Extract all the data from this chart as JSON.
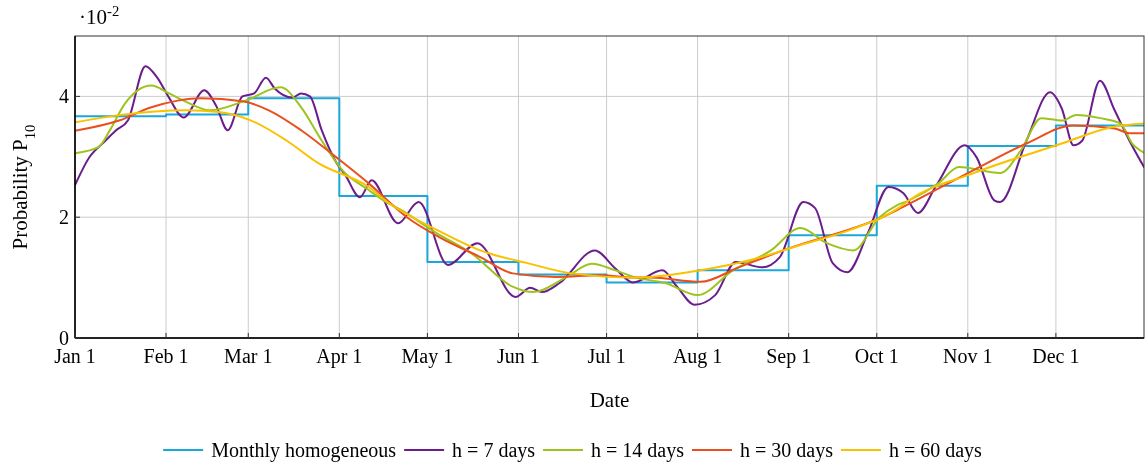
{
  "chart_data": {
    "type": "line",
    "xlabel": "Date",
    "ylabel": "Probability P$_{10}$",
    "annotations": [
      "·10$^{-2}$"
    ],
    "xlim": [
      "--01-01",
      "--12-31"
    ],
    "xticks": [
      {
        "value": "--01-01",
        "label": "Jan 1"
      },
      {
        "value": "--02-01",
        "label": "Feb 1"
      },
      {
        "value": "--03-01",
        "label": "Mar 1"
      },
      {
        "value": "--04-01",
        "label": "Apr 1"
      },
      {
        "value": "--05-01",
        "label": "May 1"
      },
      {
        "value": "--06-01",
        "label": "Jun 1"
      },
      {
        "value": "--07-01",
        "label": "Jul 1"
      },
      {
        "value": "--08-01",
        "label": "Aug 1"
      },
      {
        "value": "--09-01",
        "label": "Sep 1"
      },
      {
        "value": "--10-01",
        "label": "Oct 1"
      },
      {
        "value": "--11-01",
        "label": "Nov 1"
      },
      {
        "value": "--12-01",
        "label": "Dec 1"
      }
    ],
    "ylim": [
      0,
      5
    ],
    "yticks": [
      0,
      2,
      4
    ],
    "grid": true,
    "legend": "bottom",
    "line_style": "solid",
    "series": [
      {
        "name": "Monthly homogeneous",
        "type": "step",
        "color": "#1aa7d9",
        "x": [
          "--01-01",
          "--02-01",
          "--03-01",
          "--04-01",
          "--05-01",
          "--06-01",
          "--07-01",
          "--08-01",
          "--09-01",
          "--10-01",
          "--11-01",
          "--12-01",
          "--12-31"
        ],
        "values": [
          3.67,
          3.7,
          3.97,
          2.35,
          1.26,
          1.05,
          0.92,
          1.12,
          1.7,
          2.52,
          3.18,
          3.52,
          3.52
        ]
      },
      {
        "name": "h = 7 days",
        "color": "#6b1d8c",
        "x": [
          "--01-01",
          "--01-06",
          "--01-11",
          "--01-15",
          "--01-19",
          "--01-25",
          "--01-29",
          "--02-02",
          "--02-07",
          "--02-14",
          "--02-18",
          "--02-22",
          "--02-27",
          "--03-03",
          "--03-07",
          "--03-10",
          "--03-16",
          "--03-19",
          "--03-22",
          "--03-26",
          "--03-31",
          "--04-03",
          "--04-08",
          "--04-12",
          "--04-21",
          "--04-28",
          "--05-08",
          "--05-18",
          "--05-31",
          "--06-05",
          "--06-09",
          "--06-15",
          "--06-27",
          "--07-04",
          "--07-10",
          "--07-20",
          "--07-25",
          "--07-31",
          "--08-07",
          "--08-14",
          "--08-23",
          "--08-29",
          "--09-06",
          "--09-10",
          "--09-16",
          "--09-21",
          "--09-28",
          "--10-05",
          "--10-10",
          "--10-15",
          "--10-21",
          "--10-31",
          "--11-04",
          "--11-10",
          "--11-12",
          "--11-21",
          "--11-29",
          "--12-03",
          "--12-07",
          "--12-10",
          "--12-16",
          "--12-21",
          "--12-26",
          "--12-31"
        ],
        "values": [
          2.53,
          3.0,
          3.25,
          3.44,
          3.6,
          4.5,
          4.31,
          3.98,
          3.65,
          4.1,
          3.85,
          3.44,
          4.0,
          4.05,
          4.31,
          4.13,
          3.98,
          4.05,
          4.0,
          3.44,
          2.9,
          2.7,
          2.33,
          2.61,
          1.9,
          2.25,
          1.21,
          1.57,
          0.68,
          0.83,
          0.76,
          0.91,
          1.45,
          1.15,
          0.92,
          1.12,
          0.85,
          0.55,
          0.71,
          1.26,
          1.17,
          1.34,
          2.25,
          2.15,
          1.24,
          1.09,
          1.74,
          2.5,
          2.4,
          2.07,
          2.5,
          3.19,
          2.99,
          2.28,
          2.25,
          3.27,
          4.07,
          3.8,
          3.19,
          3.27,
          4.26,
          3.77,
          3.27,
          2.83
        ]
      },
      {
        "name": "h = 14 days",
        "color": "#9dc41e",
        "x": [
          "--01-01",
          "--01-09",
          "--01-13",
          "--01-18",
          "--01-27",
          "--02-02",
          "--02-07",
          "--02-16",
          "--02-28",
          "--03-12",
          "--03-19",
          "--03-26",
          "--04-02",
          "--04-11",
          "--04-16",
          "--04-22",
          "--05-04",
          "--05-16",
          "--05-30",
          "--06-06",
          "--06-17",
          "--06-26",
          "--07-04",
          "--07-11",
          "--07-21",
          "--08-01",
          "--08-13",
          "--08-26",
          "--09-05",
          "--09-14",
          "--09-23",
          "--10-02",
          "--10-08",
          "--10-12",
          "--10-22",
          "--10-29",
          "--11-12",
          "--11-19",
          "--11-26",
          "--12-03",
          "--12-08",
          "--12-16",
          "--12-23",
          "--12-27",
          "--12-31"
        ],
        "values": [
          3.06,
          3.16,
          3.45,
          3.88,
          4.18,
          4.05,
          3.93,
          3.77,
          3.93,
          4.15,
          3.82,
          3.27,
          2.78,
          2.45,
          2.28,
          2.12,
          1.74,
          1.4,
          0.85,
          0.76,
          1.0,
          1.23,
          1.12,
          1.0,
          0.91,
          0.71,
          1.12,
          1.45,
          1.82,
          1.57,
          1.45,
          2.0,
          2.2,
          2.28,
          2.56,
          2.83,
          2.73,
          3.1,
          3.64,
          3.6,
          3.69,
          3.64,
          3.55,
          3.22,
          3.07
        ]
      },
      {
        "name": "h = 30 days",
        "color": "#e9501d",
        "x": [
          "--01-01",
          "--01-16",
          "--01-27",
          "--02-05",
          "--02-13",
          "--02-27",
          "--03-08",
          "--03-19",
          "--03-31",
          "--04-11",
          "--04-24",
          "--05-05",
          "--05-19",
          "--05-30",
          "--06-14",
          "--06-29",
          "--07-11",
          "--07-16",
          "--08-02",
          "--08-15",
          "--09-02",
          "--09-18",
          "--10-02",
          "--10-10",
          "--11-03",
          "--11-21",
          "--12-07",
          "--12-21",
          "--12-26",
          "--12-31"
        ],
        "values": [
          3.43,
          3.6,
          3.82,
          3.93,
          3.97,
          3.92,
          3.77,
          3.44,
          2.99,
          2.56,
          2.0,
          1.67,
          1.34,
          1.07,
          1.01,
          1.04,
          1.0,
          1.0,
          0.93,
          1.17,
          1.5,
          1.74,
          1.98,
          2.17,
          2.78,
          3.22,
          3.52,
          3.47,
          3.39,
          3.39
        ]
      },
      {
        "name": "h = 60 days",
        "color": "#f8c200",
        "x": [
          "--01-01",
          "--01-16",
          "--02-08",
          "--02-19",
          "--03-02",
          "--03-14",
          "--03-25",
          "--04-11",
          "--04-18",
          "--05-03",
          "--05-19",
          "--06-04",
          "--06-19",
          "--07-11",
          "--07-16",
          "--08-02",
          "--08-19",
          "--09-05",
          "--09-22",
          "--10-09",
          "--10-12",
          "--11-03",
          "--12-03",
          "--12-20",
          "--12-31"
        ],
        "values": [
          3.57,
          3.69,
          3.77,
          3.74,
          3.6,
          3.27,
          2.89,
          2.5,
          2.23,
          1.82,
          1.45,
          1.24,
          1.07,
          1.0,
          1.01,
          1.12,
          1.29,
          1.54,
          1.79,
          2.17,
          2.28,
          2.73,
          3.22,
          3.49,
          3.55
        ]
      }
    ]
  }
}
